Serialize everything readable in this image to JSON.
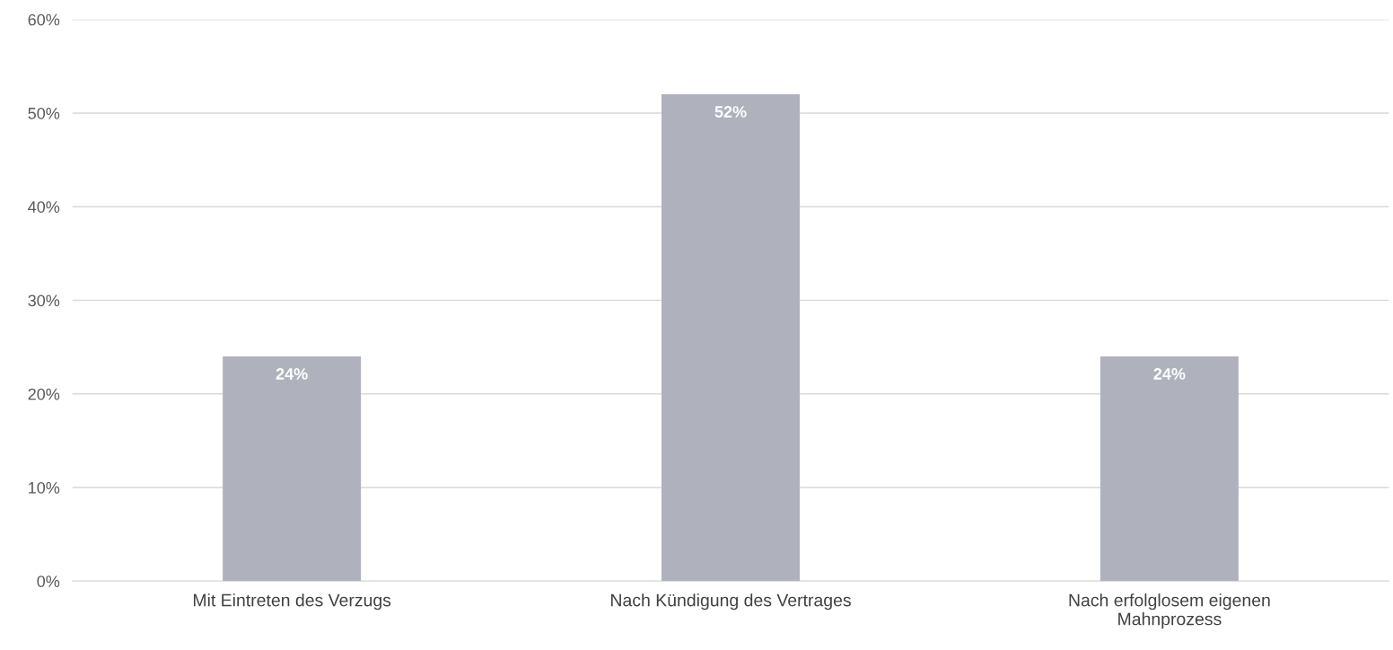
{
  "chart_data": {
    "type": "bar",
    "categories": [
      "Mit Eintreten des Verzugs",
      "Nach Kündigung des Vertrages",
      "Nach erfolglosem eigenen\nMahnprozess"
    ],
    "values": [
      24,
      52,
      24
    ],
    "value_labels": [
      "24%",
      "52%",
      "24%"
    ],
    "color": "#afb2bc",
    "ylim": [
      0,
      60
    ],
    "yticks": [
      {
        "value": 0,
        "label": "0%"
      },
      {
        "value": 10,
        "label": "10%"
      },
      {
        "value": 20,
        "label": "20%"
      },
      {
        "value": 30,
        "label": "30%"
      },
      {
        "value": 40,
        "label": "40%"
      },
      {
        "value": 50,
        "label": "50%"
      },
      {
        "value": 60,
        "label": "60%"
      }
    ],
    "grid": "y",
    "legend": false
  }
}
